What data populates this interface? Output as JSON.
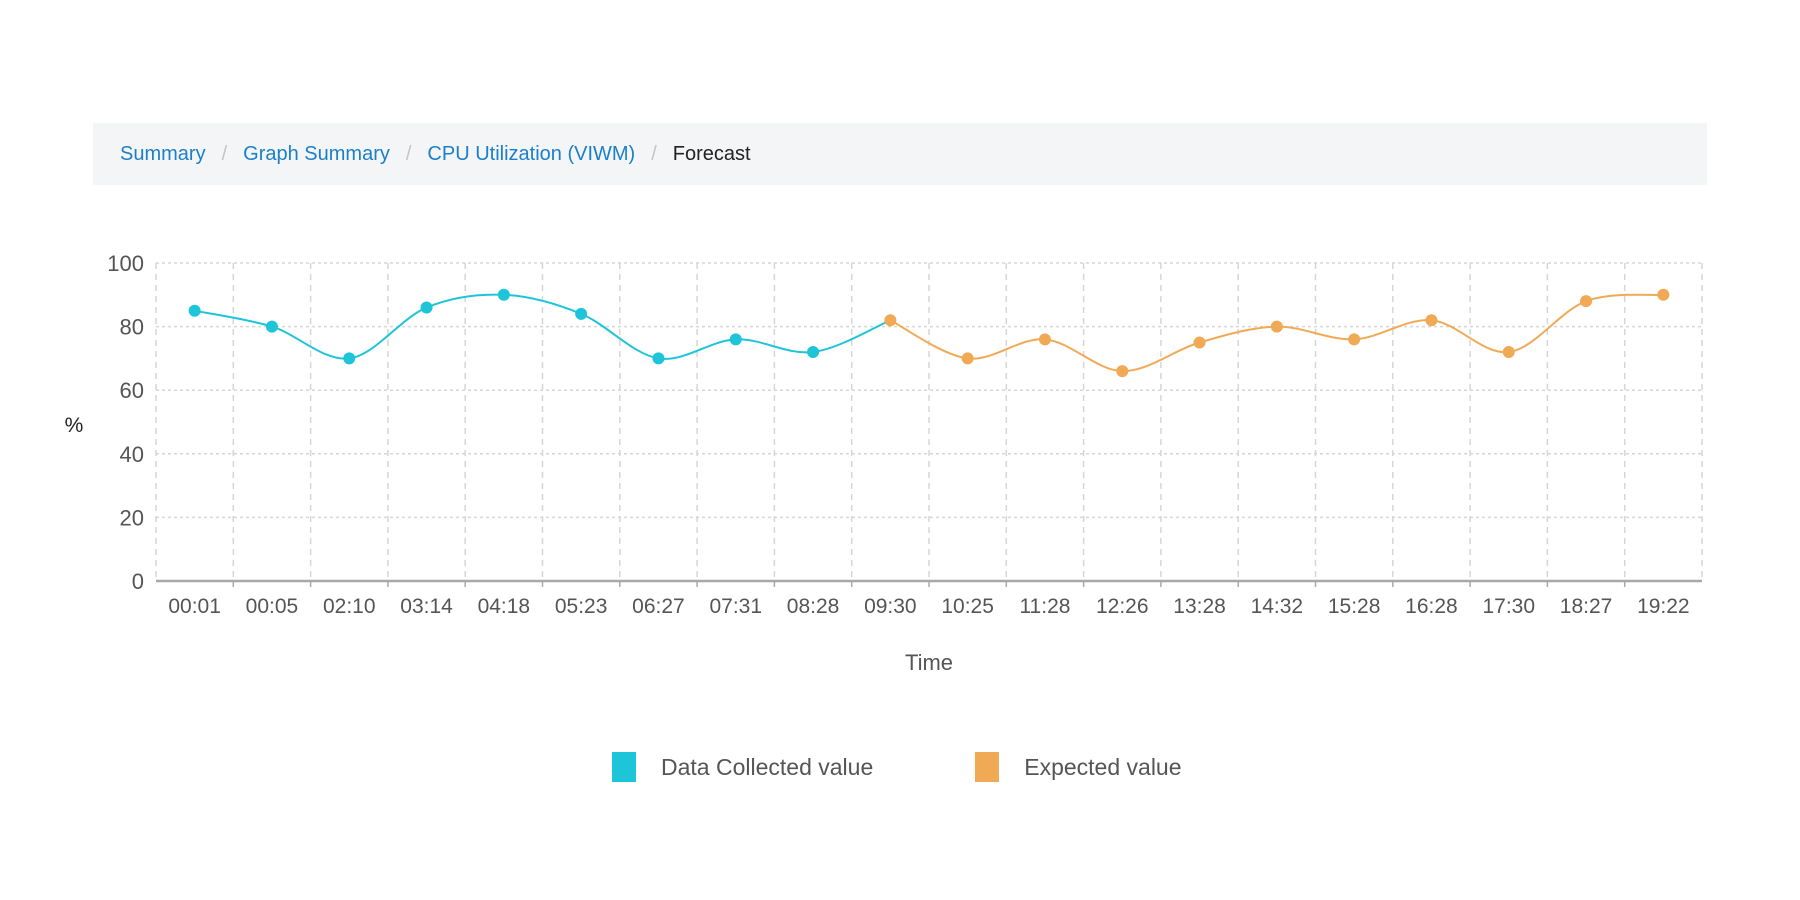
{
  "breadcrumb": {
    "items": [
      "Summary",
      "Graph Summary",
      "CPU Utilization (VIWM)"
    ],
    "current": "Forecast",
    "separator": "/"
  },
  "colors": {
    "collected": "#1ec4d8",
    "expected": "#f0aa56",
    "link": "#1b7fca"
  },
  "chart_data": {
    "type": "line",
    "xlabel": "Time",
    "ylabel": "%",
    "ylim": [
      0,
      100
    ],
    "yticks": [
      "0",
      "20",
      "40",
      "60",
      "80",
      "100"
    ],
    "grid": true,
    "legend_position": "bottom",
    "categories": [
      "00:01",
      "00:05",
      "02:10",
      "03:14",
      "04:18",
      "05:23",
      "06:27",
      "07:31",
      "08:28",
      "09:30",
      "10:25",
      "11:28",
      "12:26",
      "13:28",
      "14:32",
      "15:28",
      "16:28",
      "17:30",
      "18:27",
      "19:22"
    ],
    "series": [
      {
        "name": "Data Collected value",
        "values": [
          85,
          80,
          70,
          86,
          90,
          84,
          70,
          76,
          72,
          null,
          null,
          null,
          null,
          null,
          null,
          null,
          null,
          null,
          null,
          null
        ]
      },
      {
        "name": "Expected value",
        "values": [
          null,
          null,
          null,
          null,
          null,
          null,
          null,
          null,
          null,
          82,
          70,
          76,
          66,
          75,
          80,
          76,
          82,
          72,
          88,
          90
        ]
      }
    ]
  }
}
